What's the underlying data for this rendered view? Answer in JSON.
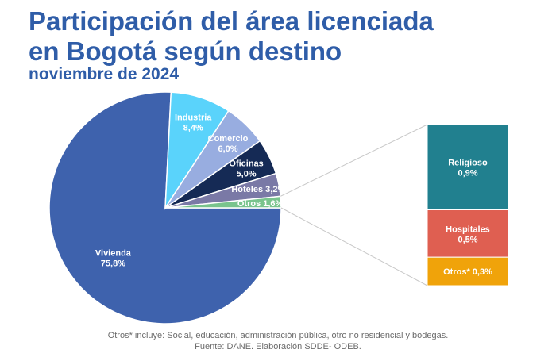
{
  "header": {
    "title_line1": "Participación del área licenciada",
    "title_line2": "en Bogotá según destino",
    "subtitle": "noviembre de 2024"
  },
  "footer": {
    "note": "Otros* incluye: Social, educación, administración pública, otro no residencial y bodegas.",
    "source": "Fuente: DANE. Elaboración SDDE- ODEB."
  },
  "chart_data": {
    "type": "pie",
    "title": "Participación del área licenciada en Bogotá según destino",
    "slices": [
      {
        "label": "Vivienda",
        "value_label": "75,8%",
        "value": 75.8,
        "color": "#3e62ad",
        "text_color": "#ffffff"
      },
      {
        "label": "Industria",
        "value_label": "8,4%",
        "value": 8.4,
        "color": "#5ad3fb",
        "text_color": "#ffffff"
      },
      {
        "label": "Comercio",
        "value_label": "6,0%",
        "value": 6.0,
        "color": "#98ade0",
        "text_color": "#ffffff"
      },
      {
        "label": "Oficinas",
        "value_label": "5,0%",
        "value": 5.0,
        "color": "#152a55",
        "text_color": "#ffffff"
      },
      {
        "label": "Hoteles",
        "value_label": "3,2%",
        "value": 3.2,
        "color": "#7a79a6",
        "text_color": "#ffffff"
      },
      {
        "label": "Otros",
        "value_label": "1,6%",
        "value": 1.6,
        "color": "#79c48d",
        "text_color": "#ffffff"
      }
    ],
    "breakdown_of": "Otros",
    "breakdown": [
      {
        "label": "Religioso",
        "value_label": "0,9%",
        "value": 0.9,
        "color": "#21808f"
      },
      {
        "label": "Hospitales",
        "value_label": "0,5%",
        "value": 0.5,
        "color": "#df5f51"
      },
      {
        "label": "Otros*",
        "value_label": "0,3%",
        "value": 0.3,
        "color": "#f0a30a"
      }
    ]
  }
}
